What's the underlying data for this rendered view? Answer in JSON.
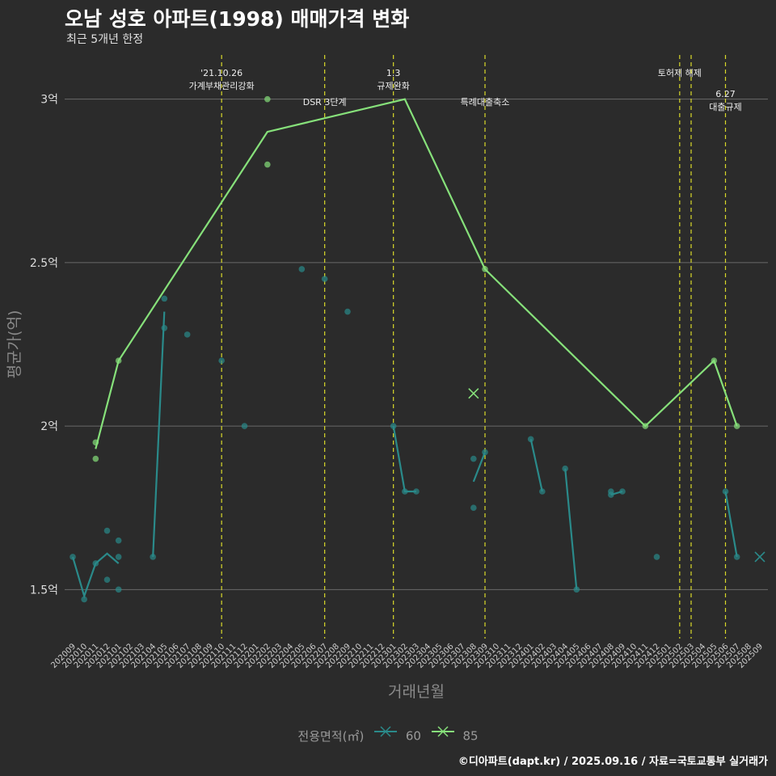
{
  "title": "오남 성호 아파트(1998) 매매가격 변화",
  "subtitle": "최근 5개년 한정",
  "caption": "©디아파트(dapt.kr) / 2025.09.16 / 자료=국토교통부 실거래가",
  "legend": {
    "title": "전용면적(㎡)",
    "items": [
      "60",
      "85"
    ]
  },
  "colors": {
    "s60": "#2a8a8a",
    "s85": "#86e07a",
    "event": "#d9d92a",
    "grid": "#6a6a6a",
    "bg": "#2b2b2b"
  },
  "chart_data": {
    "type": "line",
    "xlabel": "거래년월",
    "ylabel": "평균가(억)",
    "categories": [
      "202009",
      "202010",
      "202011",
      "202012",
      "202101",
      "202102",
      "202103",
      "202104",
      "202105",
      "202106",
      "202107",
      "202108",
      "202109",
      "202110",
      "202111",
      "202112",
      "202201",
      "202202",
      "202203",
      "202204",
      "202205",
      "202206",
      "202207",
      "202208",
      "202209",
      "202210",
      "202211",
      "202212",
      "202301",
      "202302",
      "202303",
      "202304",
      "202305",
      "202306",
      "202307",
      "202308",
      "202309",
      "202310",
      "202311",
      "202312",
      "202401",
      "202402",
      "202403",
      "202404",
      "202405",
      "202406",
      "202407",
      "202408",
      "202409",
      "202410",
      "202411",
      "202412",
      "202501",
      "202502",
      "202503",
      "202504",
      "202505",
      "202506",
      "202507",
      "202508",
      "202509"
    ],
    "ylim": [
      1.35,
      3.15
    ],
    "yticks": [
      {
        "v": 1.5,
        "label": "1.5억"
      },
      {
        "v": 2.0,
        "label": "2억"
      },
      {
        "v": 2.5,
        "label": "2.5억"
      },
      {
        "v": 3.0,
        "label": "3억"
      }
    ],
    "series": [
      {
        "name": "60",
        "lines": [
          [
            [
              "202009",
              1.6
            ],
            [
              "202010",
              1.48
            ],
            [
              "202011",
              1.58
            ],
            [
              "202012",
              1.61
            ],
            [
              "202101",
              1.58
            ]
          ],
          [
            [
              "202104",
              1.6
            ],
            [
              "202105",
              2.35
            ]
          ],
          [
            [
              "202301",
              2.0
            ],
            [
              "202302",
              1.8
            ],
            [
              "202303",
              1.8
            ]
          ],
          [
            [
              "202308",
              1.83
            ],
            [
              "202309",
              1.92
            ]
          ],
          [
            [
              "202401",
              1.96
            ],
            [
              "202402",
              1.8
            ]
          ],
          [
            [
              "202404",
              1.87
            ],
            [
              "202405",
              1.5
            ]
          ],
          [
            [
              "202408",
              1.79
            ],
            [
              "202409",
              1.8
            ]
          ],
          [
            [
              "202506",
              1.8
            ],
            [
              "202507",
              1.6
            ]
          ]
        ],
        "points": [
          [
            "202009",
            1.6
          ],
          [
            "202010",
            1.47
          ],
          [
            "202011",
            1.58
          ],
          [
            "202012",
            1.68
          ],
          [
            "202012",
            1.53
          ],
          [
            "202101",
            1.65
          ],
          [
            "202101",
            1.6
          ],
          [
            "202101",
            1.5
          ],
          [
            "202104",
            1.6
          ],
          [
            "202105",
            2.39
          ],
          [
            "202105",
            2.3
          ],
          [
            "202107",
            2.28
          ],
          [
            "202110",
            2.2
          ],
          [
            "202112",
            2.0
          ],
          [
            "202205",
            2.48
          ],
          [
            "202207",
            2.45
          ],
          [
            "202209",
            2.35
          ],
          [
            "202301",
            2.0
          ],
          [
            "202302",
            1.8
          ],
          [
            "202303",
            1.8
          ],
          [
            "202308",
            1.9
          ],
          [
            "202308",
            1.75
          ],
          [
            "202309",
            1.92
          ],
          [
            "202401",
            1.96
          ],
          [
            "202402",
            1.8
          ],
          [
            "202404",
            1.87
          ],
          [
            "202405",
            1.5
          ],
          [
            "202408",
            1.8
          ],
          [
            "202408",
            1.79
          ],
          [
            "202409",
            1.8
          ],
          [
            "202412",
            1.6
          ],
          [
            "202506",
            1.8
          ],
          [
            "202507",
            1.6
          ]
        ],
        "crosses": [
          [
            "202509",
            1.6
          ]
        ]
      },
      {
        "name": "85",
        "lines": [
          [
            [
              "202011",
              1.93
            ],
            [
              "202101",
              2.2
            ],
            [
              "202202",
              2.9
            ],
            [
              "202302",
              3.0
            ],
            [
              "202309",
              2.48
            ],
            [
              "202411",
              2.0
            ],
            [
              "202505",
              2.2
            ],
            [
              "202507",
              2.0
            ]
          ]
        ],
        "points": [
          [
            "202011",
            1.95
          ],
          [
            "202011",
            1.9
          ],
          [
            "202101",
            2.2
          ],
          [
            "202202",
            3.0
          ],
          [
            "202202",
            2.8
          ],
          [
            "202309",
            2.48
          ],
          [
            "202411",
            2.0
          ],
          [
            "202505",
            2.2
          ],
          [
            "202507",
            2.0
          ]
        ],
        "crosses": [
          [
            "202308",
            2.1
          ]
        ]
      }
    ],
    "events": [
      {
        "x": "202110",
        "lines": [
          "'21.10.26",
          "가계부채관리강화"
        ],
        "level": 1
      },
      {
        "x": "202207",
        "lines": [
          "DSR 3단계"
        ],
        "level": 2
      },
      {
        "x": "202301",
        "lines": [
          "1.3",
          "규제완화"
        ],
        "level": 1
      },
      {
        "x": "202309",
        "lines": [
          "특례대출축소"
        ],
        "level": 2
      },
      {
        "x": "202502",
        "lines": [
          "토허제 해제"
        ],
        "level": 1
      },
      {
        "x": "202503",
        "lines": [],
        "level": 1
      },
      {
        "x": "202506",
        "lines": [
          "6.27",
          "대출규제"
        ],
        "level": 3
      }
    ]
  }
}
